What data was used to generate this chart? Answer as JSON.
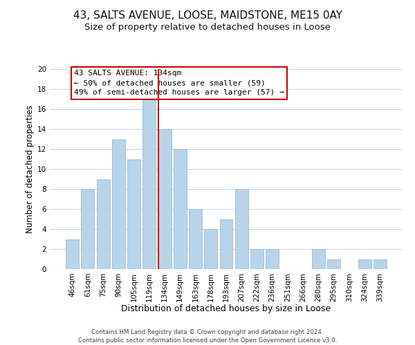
{
  "title": "43, SALTS AVENUE, LOOSE, MAIDSTONE, ME15 0AY",
  "subtitle": "Size of property relative to detached houses in Loose",
  "xlabel": "Distribution of detached houses by size in Loose",
  "ylabel": "Number of detached properties",
  "footer_line1": "Contains HM Land Registry data © Crown copyright and database right 2024.",
  "footer_line2": "Contains public sector information licensed under the Open Government Licence v3.0.",
  "bar_labels": [
    "46sqm",
    "61sqm",
    "75sqm",
    "90sqm",
    "105sqm",
    "119sqm",
    "134sqm",
    "149sqm",
    "163sqm",
    "178sqm",
    "193sqm",
    "207sqm",
    "222sqm",
    "236sqm",
    "251sqm",
    "266sqm",
    "280sqm",
    "295sqm",
    "310sqm",
    "324sqm",
    "339sqm"
  ],
  "bar_values": [
    3,
    8,
    9,
    13,
    11,
    17,
    14,
    12,
    6,
    4,
    5,
    8,
    2,
    2,
    0,
    0,
    2,
    1,
    0,
    1,
    1
  ],
  "bar_color": "#b8d4ea",
  "bar_edgecolor": "#9ab8d4",
  "reference_line_color": "#cc0000",
  "annotation_title": "43 SALTS AVENUE: 134sqm",
  "annotation_line1": "← 50% of detached houses are smaller (59)",
  "annotation_line2": "49% of semi-detached houses are larger (57) →",
  "annotation_box_edgecolor": "#cc0000",
  "annotation_box_facecolor": "#ffffff",
  "ylim": [
    0,
    20
  ],
  "yticks": [
    0,
    2,
    4,
    6,
    8,
    10,
    12,
    14,
    16,
    18,
    20
  ],
  "background_color": "#ffffff",
  "grid_color": "#c8d8ec",
  "title_fontsize": 11,
  "subtitle_fontsize": 9.5,
  "xlabel_fontsize": 9,
  "ylabel_fontsize": 8.5,
  "tick_fontsize": 7.5,
  "annotation_fontsize": 8,
  "footer_fontsize": 6.2
}
